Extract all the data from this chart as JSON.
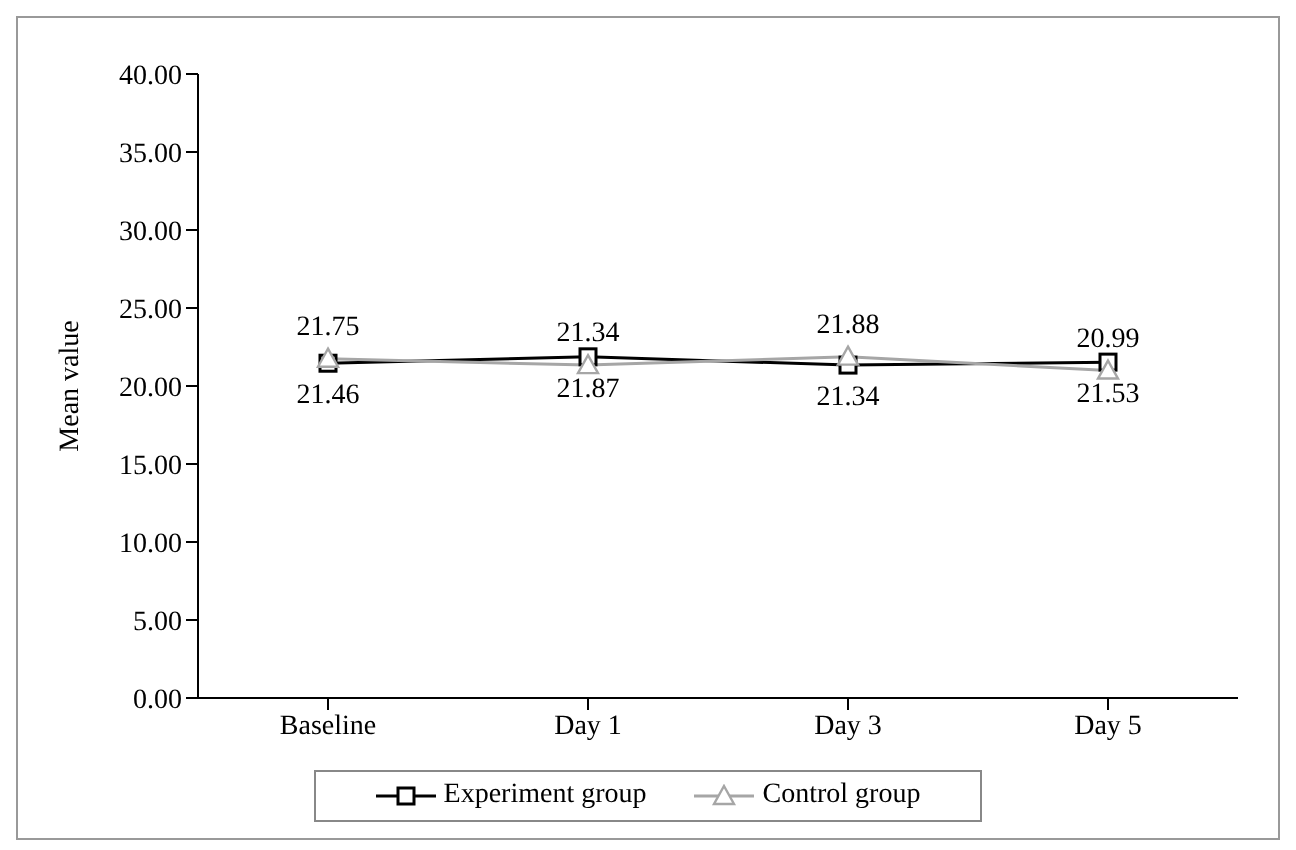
{
  "chart_data": {
    "type": "line",
    "ylabel": "Mean value",
    "categories": [
      "Baseline",
      "Day 1",
      "Day 3",
      "Day 5"
    ],
    "series": [
      {
        "name": "Experiment group",
        "color": "#000000",
        "marker": "square",
        "values": [
          21.46,
          21.87,
          21.34,
          21.53
        ]
      },
      {
        "name": "Control group",
        "color": "#a6a6a6",
        "marker": "triangle",
        "values": [
          21.75,
          21.34,
          21.88,
          20.99
        ]
      }
    ],
    "ylim": [
      0,
      40
    ],
    "yticks": [
      {
        "value": 0,
        "label": "0.00"
      },
      {
        "value": 5,
        "label": "5.00"
      },
      {
        "value": 10,
        "label": "10.00"
      },
      {
        "value": 15,
        "label": "15.00"
      },
      {
        "value": 20,
        "label": "20.00"
      },
      {
        "value": 25,
        "label": "25.00"
      },
      {
        "value": 30,
        "label": "30.00"
      },
      {
        "value": 35,
        "label": "35.00"
      },
      {
        "value": 40,
        "label": "40.00"
      }
    ],
    "grid": false,
    "legend": "bottom",
    "data_labels": true
  }
}
